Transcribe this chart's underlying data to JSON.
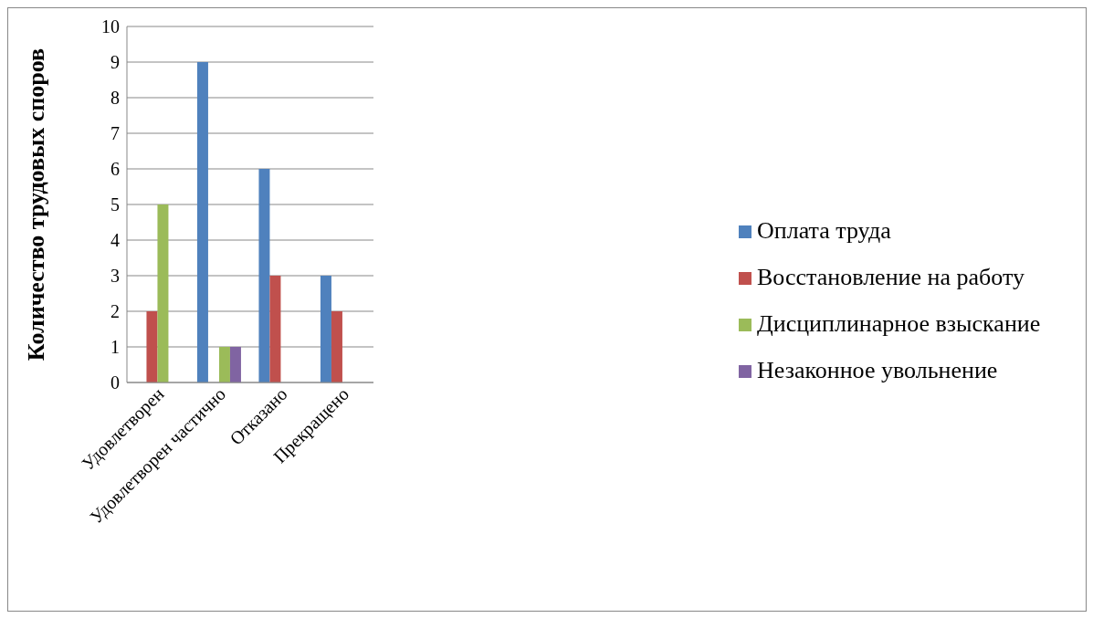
{
  "chart_data": {
    "type": "bar",
    "ylabel": "Количество трудовых споров",
    "categories": [
      "Удовлетворен",
      "Удовлетворен частично",
      "Отказано",
      "Прекращено"
    ],
    "series": [
      {
        "name": "Оплата труда",
        "color": "#4f81bd",
        "values": [
          0,
          9,
          6,
          3
        ]
      },
      {
        "name": "Восстановление на работу",
        "color": "#c0504d",
        "values": [
          2,
          0,
          3,
          2
        ]
      },
      {
        "name": "Дисциплинарное взыскание",
        "color": "#9bbb59",
        "values": [
          5,
          1,
          0,
          0
        ]
      },
      {
        "name": "Незаконное увольнение",
        "color": "#8064a2",
        "values": [
          0,
          1,
          0,
          0
        ]
      }
    ],
    "ylim": [
      0,
      10
    ],
    "yticks": [
      0,
      1,
      2,
      3,
      4,
      5,
      6,
      7,
      8,
      9,
      10
    ],
    "grid": "y",
    "legend": "right"
  }
}
